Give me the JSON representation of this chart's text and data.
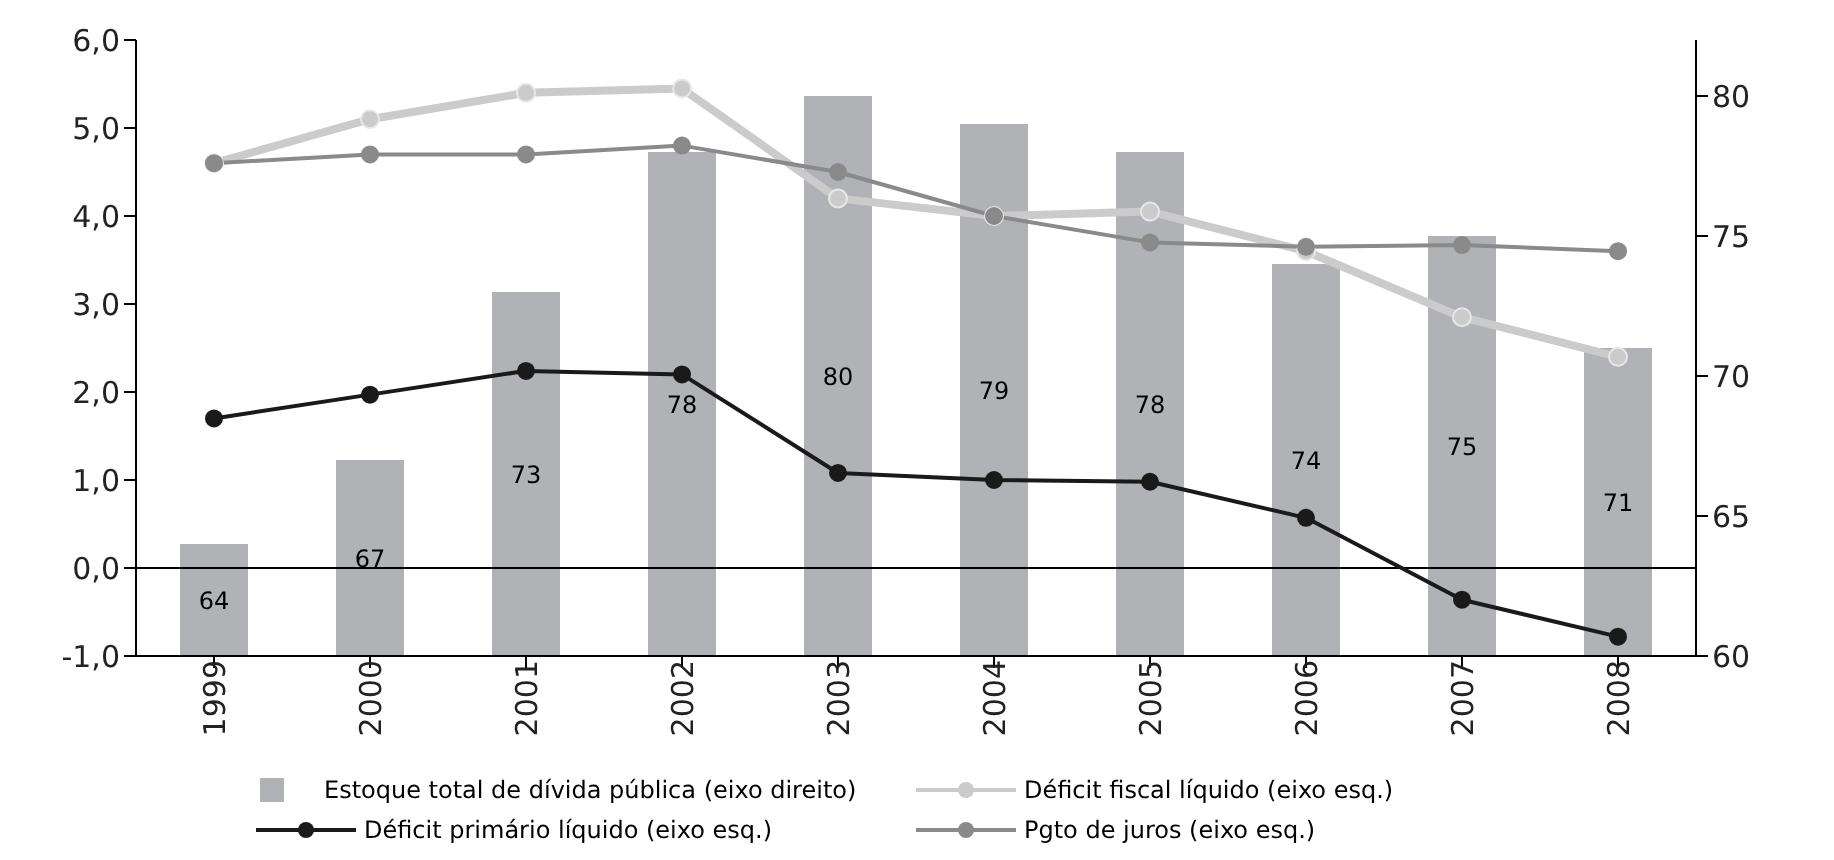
{
  "chart_data": {
    "type": "bar",
    "categories": [
      "1999",
      "2000",
      "2001",
      "2002",
      "2003",
      "2004",
      "2005",
      "2006",
      "2007",
      "2008"
    ],
    "series": [
      {
        "name": "Estoque total de dívida pública (eixo direito)",
        "axis": "y2",
        "color": "#b1b2b5",
        "values": [
          64,
          67,
          73,
          78,
          80,
          79,
          78,
          74,
          75,
          71
        ],
        "data_labels": true
      },
      {
        "name": "Déficit fiscal líquido (eixo esq.)",
        "type": "line",
        "color": "#cbcbcb",
        "marker": "circle",
        "values": [
          4.6,
          5.1,
          5.4,
          5.45,
          4.2,
          4.0,
          4.05,
          3.6,
          2.85,
          2.4
        ]
      },
      {
        "name": "Déficit primário líquido (eixo esq.)",
        "type": "line",
        "color": "#1a1a1a",
        "marker": "circle",
        "values": [
          1.7,
          1.97,
          2.24,
          2.2,
          1.08,
          1.0,
          0.98,
          0.57,
          -0.36,
          -0.78
        ]
      },
      {
        "name": "Pgto de juros (eixo esq.)",
        "type": "line",
        "color": "#8a8a8a",
        "marker": "circle",
        "values": [
          4.6,
          4.7,
          4.7,
          4.8,
          4.5,
          4.0,
          3.7,
          3.65,
          3.67,
          3.6
        ]
      }
    ],
    "ylim": [
      -1,
      6
    ],
    "yticks": [
      {
        "value": -1,
        "label": "-1,0"
      },
      {
        "value": 0,
        "label": "0,0"
      },
      {
        "value": 1,
        "label": "1,0"
      },
      {
        "value": 2,
        "label": "2,0"
      },
      {
        "value": 3,
        "label": "3,0"
      },
      {
        "value": 4,
        "label": "4,0"
      },
      {
        "value": 5,
        "label": "5,0"
      },
      {
        "value": 6,
        "label": "6,0"
      }
    ],
    "y2lim": [
      60,
      82
    ],
    "y2ticks": [
      60,
      65,
      70,
      75,
      80
    ],
    "ref_lines": [
      {
        "axis": "y",
        "value": 0,
        "color": "#000000"
      }
    ],
    "grid": false,
    "legend": "bottom"
  }
}
